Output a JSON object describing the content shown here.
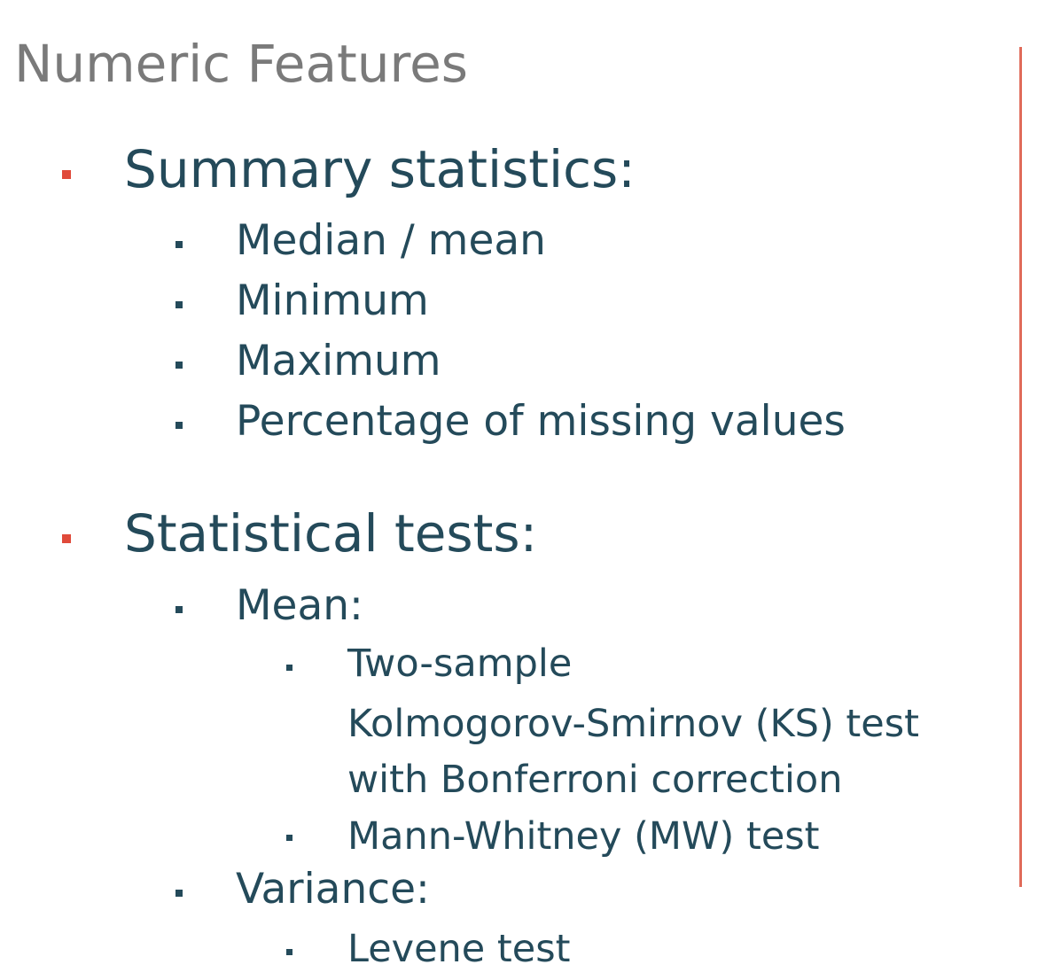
{
  "title": "Numeric Features",
  "accent_color": "#e06b5a",
  "text_color": "#244a5a",
  "sections": [
    {
      "heading": "Summary statistics:",
      "items": [
        "Median / mean",
        "Minimum",
        "Maximum",
        "Percentage of missing values"
      ]
    },
    {
      "heading": "Statistical tests:",
      "groups": [
        {
          "label": "Mean:",
          "items": [
            [
              "Two-sample",
              "Kolmogorov-Smirnov (KS) test",
              "with Bonferroni correction"
            ],
            [
              "Mann-Whitney (MW) test"
            ]
          ]
        },
        {
          "label": "Variance:",
          "items": [
            [
              "Levene test"
            ]
          ]
        }
      ]
    }
  ]
}
